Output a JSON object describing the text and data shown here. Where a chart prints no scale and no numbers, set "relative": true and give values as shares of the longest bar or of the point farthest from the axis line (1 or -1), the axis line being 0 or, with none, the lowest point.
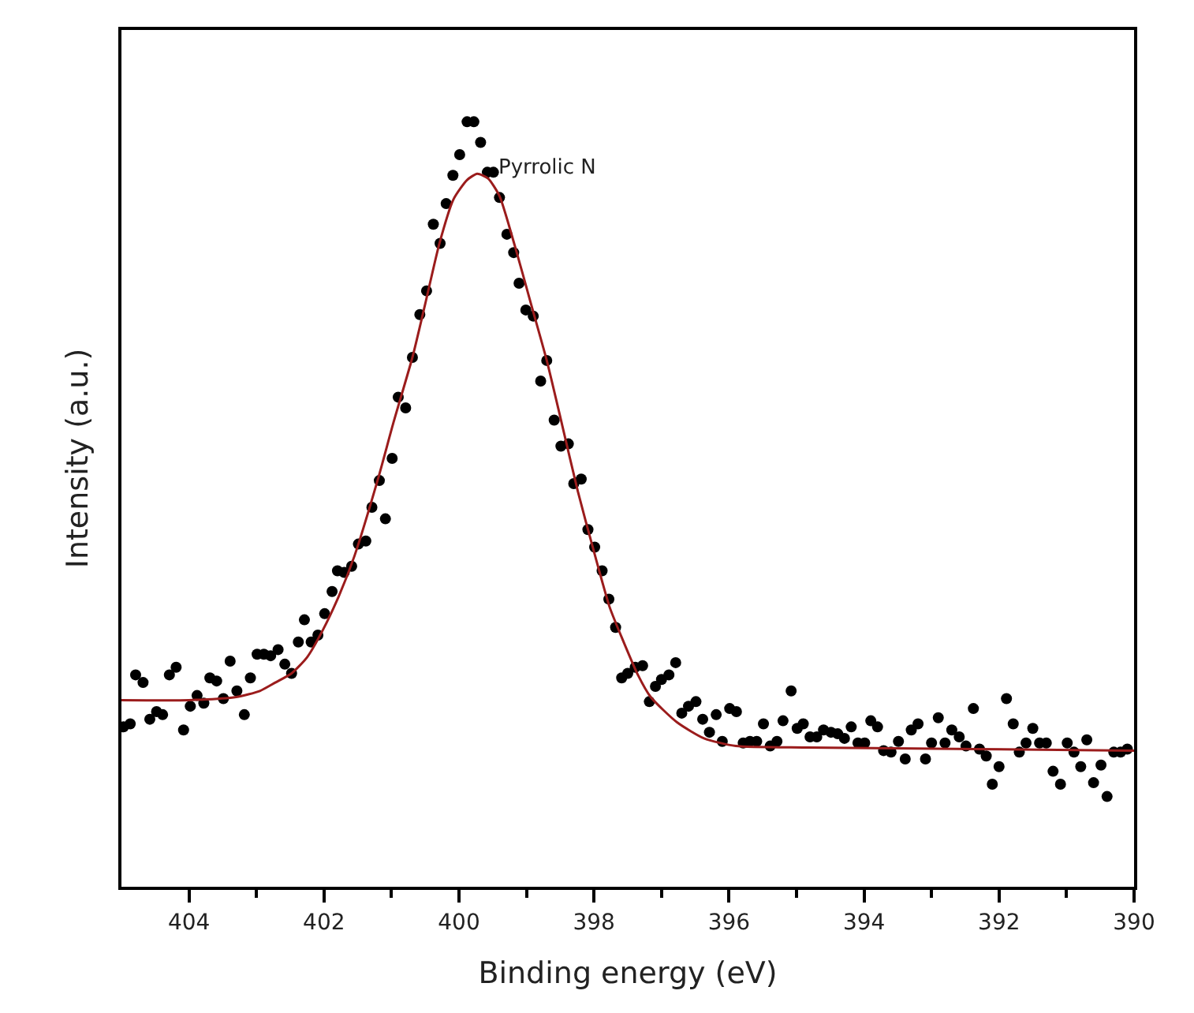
{
  "chart_data": {
    "type": "scatter",
    "xlabel": "Binding energy (eV)",
    "ylabel": "Intensity (a.u.)",
    "relative": true,
    "marker": "circle",
    "xlim": [
      405,
      390
    ],
    "xticks": [
      404,
      {
        "value": 403,
        "label": null
      },
      402,
      {
        "value": 401,
        "label": null
      },
      400,
      {
        "value": 399,
        "label": null
      },
      398,
      {
        "value": 397,
        "label": null
      },
      396,
      {
        "value": 395,
        "label": null
      },
      394,
      {
        "value": 393,
        "label": null
      },
      392,
      {
        "value": 391,
        "label": null
      },
      390
    ],
    "annotations": [
      "Pyrrolic N"
    ],
    "series": [
      {
        "color": "#000000",
        "x": [
          404.97,
          404.87,
          404.79,
          404.68,
          404.58,
          404.48,
          404.39,
          404.29,
          404.19,
          404.08,
          403.98,
          403.88,
          403.78,
          403.69,
          403.59,
          403.49,
          403.39,
          403.29,
          403.18,
          403.09,
          402.99,
          402.89,
          402.79,
          402.68,
          402.58,
          402.48,
          402.38,
          402.29,
          402.19,
          402.09,
          401.99,
          401.88,
          401.8,
          401.7,
          401.59,
          401.49,
          401.38,
          401.29,
          401.18,
          401.09,
          400.99,
          400.9,
          400.79,
          400.69,
          400.58,
          400.48,
          400.38,
          400.28,
          400.19,
          400.09,
          399.99,
          399.88,
          399.78,
          399.68,
          399.58,
          399.49,
          399.4,
          399.29,
          399.19,
          399.11,
          399.01,
          398.9,
          398.79,
          398.7,
          398.59,
          398.49,
          398.38,
          398.3,
          398.19,
          398.09,
          397.99,
          397.88,
          397.78,
          397.68,
          397.59,
          397.5,
          397.39,
          397.28,
          397.18,
          397.09,
          397.0,
          396.89,
          396.79,
          396.7,
          396.6,
          396.49,
          396.39,
          396.29,
          396.19,
          396.1,
          395.99,
          395.89,
          395.79,
          395.69,
          395.59,
          395.49,
          395.39,
          395.29,
          395.2,
          395.08,
          394.99,
          394.9,
          394.8,
          394.7,
          394.6,
          394.49,
          394.39,
          394.29,
          394.19,
          394.09,
          393.99,
          393.9,
          393.8,
          393.71,
          393.6,
          393.49,
          393.39,
          393.3,
          393.2,
          393.09,
          393.0,
          392.9,
          392.8,
          392.7,
          392.59,
          392.49,
          392.38,
          392.29,
          392.19,
          392.1,
          392.0,
          391.89,
          391.79,
          391.7,
          391.6,
          391.5,
          391.4,
          391.3,
          391.2,
          391.09,
          390.99,
          390.89,
          390.79,
          390.7,
          390.6,
          390.49,
          390.4,
          390.3,
          390.2,
          390.1
        ],
        "values": [
          0.209,
          0.213,
          0.277,
          0.267,
          0.219,
          0.229,
          0.225,
          0.277,
          0.287,
          0.205,
          0.236,
          0.25,
          0.24,
          0.273,
          0.269,
          0.246,
          0.295,
          0.256,
          0.225,
          0.273,
          0.304,
          0.304,
          0.302,
          0.31,
          0.291,
          0.279,
          0.32,
          0.349,
          0.32,
          0.329,
          0.357,
          0.386,
          0.413,
          0.411,
          0.419,
          0.448,
          0.452,
          0.496,
          0.531,
          0.481,
          0.56,
          0.64,
          0.626,
          0.692,
          0.748,
          0.779,
          0.866,
          0.841,
          0.893,
          0.93,
          0.957,
          1.0,
          1.0,
          0.973,
          0.934,
          0.934,
          0.901,
          0.853,
          0.829,
          0.789,
          0.754,
          0.746,
          0.661,
          0.688,
          0.61,
          0.576,
          0.579,
          0.527,
          0.533,
          0.467,
          0.444,
          0.413,
          0.376,
          0.339,
          0.273,
          0.279,
          0.287,
          0.289,
          0.242,
          0.262,
          0.271,
          0.277,
          0.293,
          0.227,
          0.236,
          0.242,
          0.219,
          0.202,
          0.225,
          0.19,
          0.233,
          0.229,
          0.188,
          0.19,
          0.19,
          0.213,
          0.184,
          0.19,
          0.217,
          0.256,
          0.207,
          0.213,
          0.196,
          0.196,
          0.205,
          0.202,
          0.2,
          0.194,
          0.209,
          0.188,
          0.188,
          0.217,
          0.209,
          0.178,
          0.176,
          0.19,
          0.167,
          0.205,
          0.213,
          0.167,
          0.188,
          0.221,
          0.188,
          0.205,
          0.196,
          0.184,
          0.233,
          0.18,
          0.171,
          0.134,
          0.157,
          0.246,
          0.213,
          0.176,
          0.188,
          0.207,
          0.188,
          0.188,
          0.151,
          0.134,
          0.188,
          0.176,
          0.157,
          0.192,
          0.136,
          0.159,
          0.118,
          0.176,
          0.176,
          0.18
        ]
      },
      {
        "type": "line",
        "color": "#9b1c1c",
        "marker": "none",
        "line_style": "solid",
        "x": [
          405.0,
          404.0,
          403.3,
          402.95,
          402.72,
          402.48,
          402.25,
          402.02,
          401.78,
          401.55,
          401.2,
          400.97,
          400.69,
          400.5,
          400.29,
          400.08,
          399.88,
          399.73,
          399.57,
          399.4,
          399.17,
          398.94,
          398.7,
          398.47,
          398.24,
          398.0,
          397.77,
          397.58,
          397.35,
          397.16,
          396.77,
          396.37,
          395.9,
          394.83,
          392.33,
          390.0
        ],
        "values": [
          0.244,
          0.244,
          0.248,
          0.256,
          0.267,
          0.279,
          0.3,
          0.335,
          0.38,
          0.432,
          0.533,
          0.607,
          0.692,
          0.762,
          0.841,
          0.899,
          0.924,
          0.932,
          0.926,
          0.903,
          0.837,
          0.764,
          0.688,
          0.603,
          0.517,
          0.438,
          0.366,
          0.324,
          0.277,
          0.248,
          0.215,
          0.194,
          0.184,
          0.182,
          0.18,
          0.178
        ]
      }
    ]
  }
}
